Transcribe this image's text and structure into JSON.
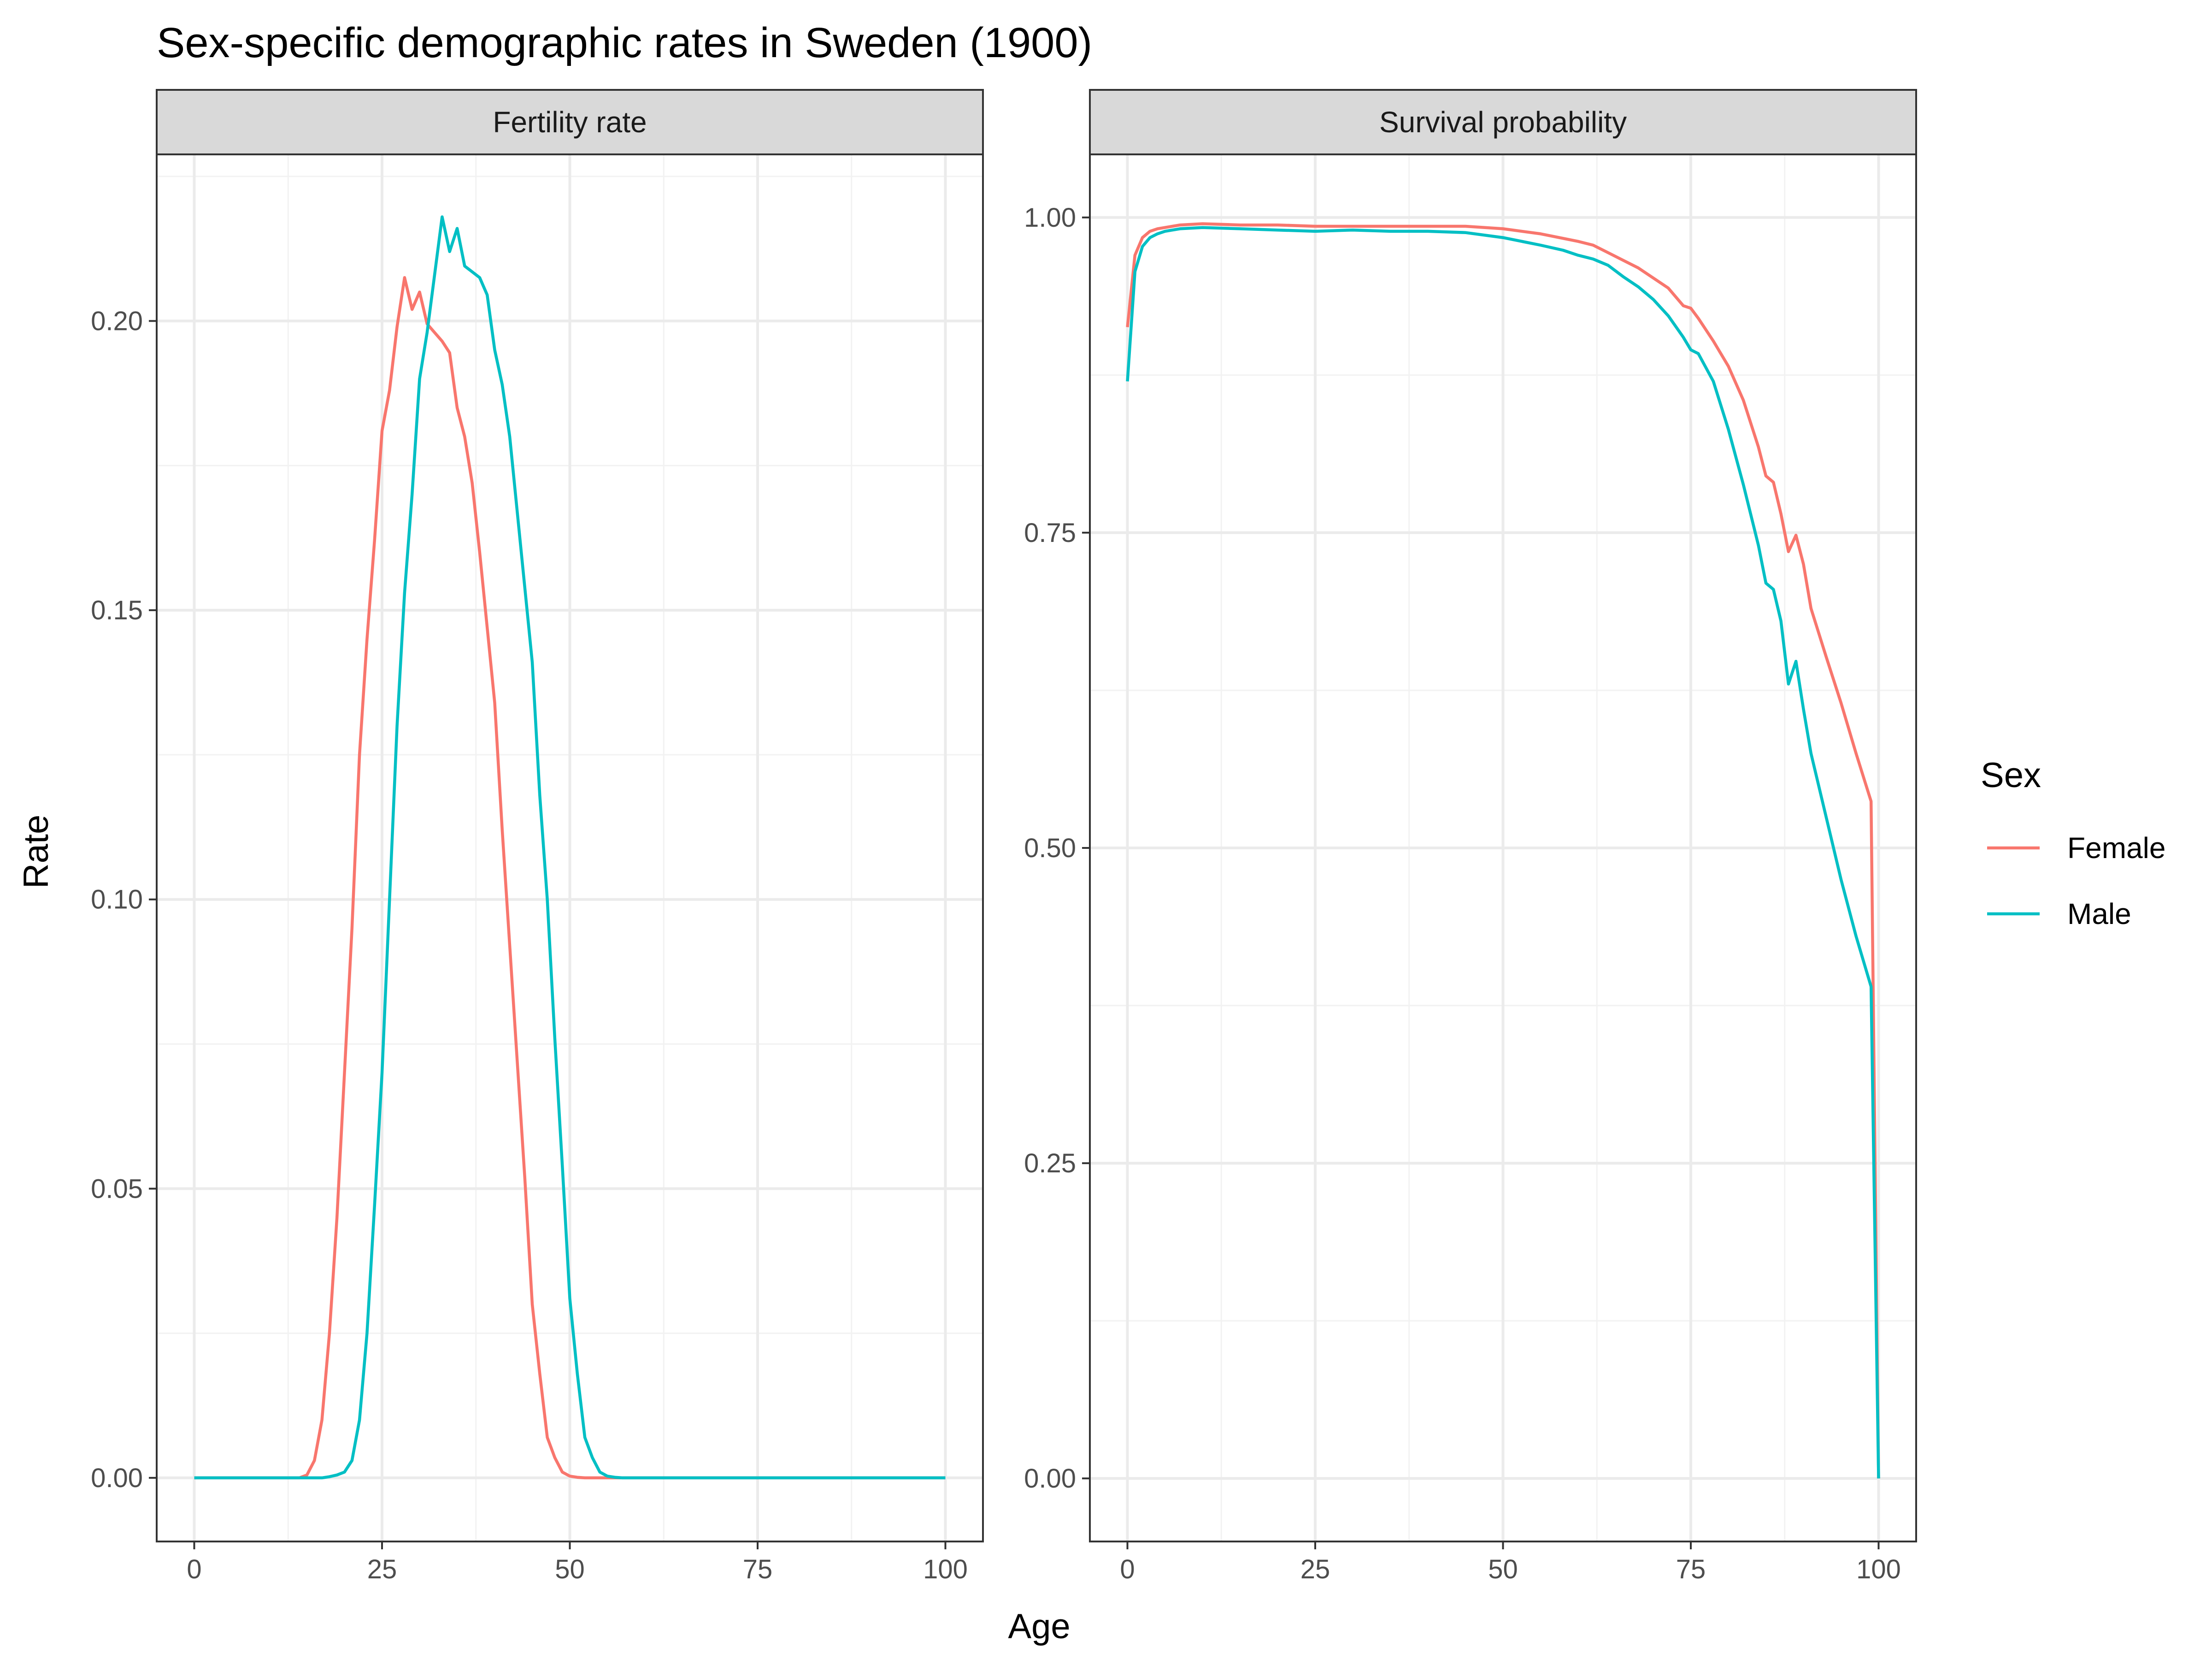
{
  "chart_data": {
    "type": "line",
    "title": "Sex-specific demographic rates in Sweden (1900)",
    "xlabel": "Age",
    "ylabel": "Rate",
    "grid": true,
    "legend": {
      "title": "Sex",
      "position": "right",
      "entries": [
        {
          "name": "Female",
          "color": "#F8766D"
        },
        {
          "name": "Male",
          "color": "#00BFC4"
        }
      ]
    },
    "panels": [
      {
        "label": "Fertility rate",
        "xlim": [
          -5,
          105
        ],
        "ylim": [
          -0.011,
          0.2288
        ],
        "x_ticks": [
          0,
          25,
          50,
          75,
          100
        ],
        "x_tick_labels": [
          "0",
          "25",
          "50",
          "75",
          "100"
        ],
        "y_ticks": [
          0,
          0.05,
          0.1,
          0.15,
          0.2
        ],
        "y_tick_labels": [
          "0.00",
          "0.05",
          "0.10",
          "0.15",
          "0.20"
        ],
        "series": [
          {
            "name": "Female",
            "color": "#F8766D",
            "x": [
              0,
              14,
              15,
              16,
              17,
              18,
              19,
              20,
              21,
              22,
              23,
              24,
              25,
              26,
              27,
              28,
              29,
              30,
              31,
              32,
              33,
              34,
              35,
              36,
              37,
              38,
              39,
              40,
              41,
              42,
              43,
              44,
              45,
              46,
              47,
              48,
              49,
              50,
              51,
              52,
              55,
              100
            ],
            "y": [
              0,
              0,
              0.0005,
              0.003,
              0.01,
              0.025,
              0.045,
              0.07,
              0.095,
              0.125,
              0.145,
              0.162,
              0.181,
              0.188,
              0.199,
              0.2075,
              0.202,
              0.205,
              0.1995,
              0.198,
              0.1965,
              0.1945,
              0.185,
              0.18,
              0.172,
              0.16,
              0.147,
              0.134,
              0.112,
              0.092,
              0.072,
              0.052,
              0.03,
              0.018,
              0.007,
              0.0035,
              0.001,
              0.0003,
              0.0001,
              0,
              0,
              0
            ]
          },
          {
            "name": "Male",
            "color": "#00BFC4",
            "x": [
              0,
              17,
              18,
              19,
              20,
              21,
              22,
              23,
              24,
              25,
              26,
              27,
              28,
              29,
              30,
              31,
              32,
              33,
              34,
              35,
              36,
              37,
              38,
              39,
              40,
              41,
              42,
              43,
              44,
              45,
              46,
              47,
              48,
              49,
              50,
              51,
              52,
              53,
              54,
              55,
              56,
              57,
              100
            ],
            "y": [
              0,
              0,
              0.0002,
              0.0005,
              0.001,
              0.003,
              0.01,
              0.025,
              0.047,
              0.07,
              0.1,
              0.13,
              0.153,
              0.17,
              0.19,
              0.198,
              0.208,
              0.218,
              0.212,
              0.216,
              0.2095,
              0.2085,
              0.2075,
              0.2045,
              0.195,
              0.189,
              0.18,
              0.167,
              0.154,
              0.141,
              0.118,
              0.1,
              0.076,
              0.054,
              0.031,
              0.018,
              0.007,
              0.0035,
              0.001,
              0.0003,
              0.0001,
              0,
              0
            ]
          }
        ]
      },
      {
        "label": "Survival probability",
        "xlim": [
          -5,
          105
        ],
        "ylim": [
          -0.05,
          1.05
        ],
        "x_ticks": [
          0,
          25,
          50,
          75,
          100
        ],
        "x_tick_labels": [
          "0",
          "25",
          "50",
          "75",
          "100"
        ],
        "y_ticks": [
          0,
          0.25,
          0.5,
          0.75,
          1.0
        ],
        "y_tick_labels": [
          "0.00",
          "0.25",
          "0.50",
          "0.75",
          "1.00"
        ],
        "series": [
          {
            "name": "Female",
            "color": "#F8766D",
            "x": [
              0,
              1,
              2,
              3,
              4,
              5,
              7,
              10,
              15,
              20,
              25,
              30,
              35,
              40,
              45,
              50,
              55,
              60,
              62,
              64,
              66,
              68,
              70,
              72,
              74,
              75,
              76,
              78,
              80,
              82,
              84,
              85,
              86,
              87,
              88,
              89,
              90,
              91,
              93,
              95,
              97,
              99,
              100
            ],
            "y": [
              0.913,
              0.97,
              0.984,
              0.989,
              0.991,
              0.992,
              0.994,
              0.995,
              0.994,
              0.994,
              0.993,
              0.993,
              0.993,
              0.993,
              0.993,
              0.991,
              0.987,
              0.981,
              0.978,
              0.972,
              0.966,
              0.96,
              0.952,
              0.944,
              0.93,
              0.928,
              0.92,
              0.902,
              0.882,
              0.855,
              0.818,
              0.795,
              0.79,
              0.765,
              0.735,
              0.748,
              0.725,
              0.69,
              0.652,
              0.615,
              0.575,
              0.537,
              0
            ]
          },
          {
            "name": "Male",
            "color": "#00BFC4",
            "x": [
              0,
              1,
              2,
              3,
              4,
              5,
              7,
              10,
              15,
              20,
              25,
              30,
              35,
              40,
              45,
              50,
              55,
              58,
              60,
              62,
              64,
              66,
              68,
              70,
              72,
              74,
              75,
              76,
              78,
              80,
              82,
              84,
              85,
              86,
              87,
              88,
              89,
              90,
              91,
              93,
              95,
              97,
              99,
              100
            ],
            "y": [
              0.87,
              0.957,
              0.977,
              0.984,
              0.987,
              0.989,
              0.991,
              0.992,
              0.991,
              0.99,
              0.989,
              0.99,
              0.989,
              0.989,
              0.988,
              0.984,
              0.978,
              0.974,
              0.97,
              0.967,
              0.962,
              0.953,
              0.945,
              0.935,
              0.922,
              0.905,
              0.895,
              0.892,
              0.87,
              0.832,
              0.788,
              0.74,
              0.71,
              0.705,
              0.68,
              0.63,
              0.648,
              0.61,
              0.575,
              0.525,
              0.475,
              0.43,
              0.39,
              0
            ]
          }
        ]
      }
    ]
  }
}
